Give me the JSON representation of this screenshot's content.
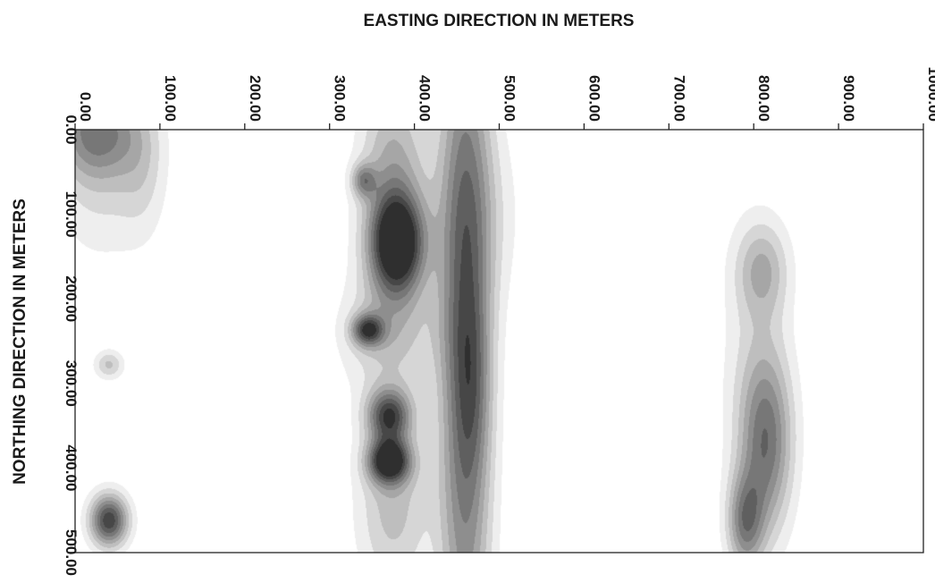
{
  "chart_data": {
    "type": "heatmap",
    "subtype": "filled-contour",
    "title": "",
    "xlabel": "EASTING DIRECTION IN METERS",
    "ylabel": "NORTHING DIRECTION IN METERS",
    "x_axis_position": "top",
    "y_axis_inverted": true,
    "xlim": [
      0,
      1000
    ],
    "ylim": [
      0,
      500
    ],
    "x_ticks": [
      "0.00",
      "100.00",
      "200.00",
      "300.00",
      "400.00",
      "500.00",
      "600.00",
      "700.00",
      "800.00",
      "900.00",
      "1000.00"
    ],
    "y_ticks": [
      "0.00",
      "100.00",
      "200.00",
      "300.00",
      "400.00",
      "500.00"
    ],
    "grid": false,
    "legend": "none",
    "colormap": "grayscale (white = low, black = high)",
    "contour_levels": 10,
    "anomalies": [
      {
        "x": 25,
        "y": 0,
        "sx": 35,
        "sy": 40,
        "amp": 0.55
      },
      {
        "x": 30,
        "y": 60,
        "sx": 40,
        "sy": 70,
        "amp": 0.2
      },
      {
        "x": 80,
        "y": 40,
        "sx": 20,
        "sy": 60,
        "amp": 0.18
      },
      {
        "x": 40,
        "y": 278,
        "sx": 12,
        "sy": 12,
        "amp": 0.32
      },
      {
        "x": 40,
        "y": 462,
        "sx": 16,
        "sy": 22,
        "amp": 0.88
      },
      {
        "x": 380,
        "y": 135,
        "sx": 22,
        "sy": 40,
        "amp": 1.0
      },
      {
        "x": 375,
        "y": 60,
        "sx": 28,
        "sy": 90,
        "amp": 0.45
      },
      {
        "x": 370,
        "y": 240,
        "sx": 40,
        "sy": 50,
        "amp": 0.3
      },
      {
        "x": 345,
        "y": 237,
        "sx": 13,
        "sy": 13,
        "amp": 0.72
      },
      {
        "x": 370,
        "y": 338,
        "sx": 18,
        "sy": 22,
        "amp": 0.75
      },
      {
        "x": 370,
        "y": 392,
        "sx": 17,
        "sy": 18,
        "amp": 0.95
      },
      {
        "x": 375,
        "y": 440,
        "sx": 30,
        "sy": 80,
        "amp": 0.35
      },
      {
        "x": 340,
        "y": 60,
        "sx": 10,
        "sy": 14,
        "amp": 0.45
      },
      {
        "x": 460,
        "y": 250,
        "sx": 22,
        "sy": 320,
        "amp": 0.72
      },
      {
        "x": 470,
        "y": 300,
        "sx": 15,
        "sy": 80,
        "amp": 0.2
      },
      {
        "x": 480,
        "y": 100,
        "sx": 35,
        "sy": 80,
        "amp": 0.15
      },
      {
        "x": 810,
        "y": 165,
        "sx": 22,
        "sy": 40,
        "amp": 0.35
      },
      {
        "x": 815,
        "y": 370,
        "sx": 22,
        "sy": 75,
        "amp": 0.6
      },
      {
        "x": 790,
        "y": 465,
        "sx": 15,
        "sy": 40,
        "amp": 0.55
      },
      {
        "x": 800,
        "y": 280,
        "sx": 30,
        "sy": 120,
        "amp": 0.15
      }
    ]
  }
}
